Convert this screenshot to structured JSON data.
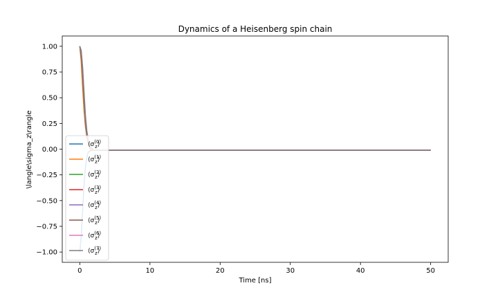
{
  "chart_data": {
    "type": "line",
    "title": "Dynamics of a Heisenberg spin chain",
    "xlabel": "Time [ns]",
    "ylabel": "\\langle\\sigma_z\\rangle",
    "xlim": [
      -2.5,
      52.5
    ],
    "ylim": [
      -1.1,
      1.1
    ],
    "xticks": [
      0,
      10,
      20,
      30,
      40,
      50
    ],
    "yticks": [
      -1.0,
      -0.75,
      -0.5,
      -0.25,
      0.0,
      0.25,
      0.5,
      0.75,
      1.0
    ],
    "xtick_labels": [
      "0",
      "10",
      "20",
      "30",
      "40",
      "50"
    ],
    "ytick_labels": [
      "−1.00",
      "−0.75",
      "−0.50",
      "−0.25",
      "0.00",
      "0.25",
      "0.50",
      "0.75",
      "1.00"
    ],
    "grid": false,
    "legend_position": "lower-left",
    "series": [
      {
        "name": "⟨σz(0)⟩",
        "label_base": "σ",
        "label_sub": "z",
        "label_sup": "(0)",
        "color": "#1f77b4",
        "x": [
          0,
          0.2,
          0.4,
          0.6,
          0.8,
          1.0,
          1.2,
          1.5,
          2.0,
          3.0,
          50
        ],
        "y": [
          -1.0,
          -0.85,
          -0.6,
          -0.35,
          -0.18,
          -0.08,
          -0.03,
          -0.015,
          -0.01,
          -0.01,
          -0.01
        ]
      },
      {
        "name": "⟨σz(1)⟩",
        "label_base": "σ",
        "label_sub": "z",
        "label_sup": "(1)",
        "color": "#ff7f0e",
        "x": [
          0,
          0.2,
          0.4,
          0.6,
          0.8,
          1.0,
          1.2,
          1.5,
          2.0,
          3.0,
          50
        ],
        "y": [
          1.0,
          0.85,
          0.6,
          0.38,
          0.22,
          0.12,
          0.05,
          0.0,
          -0.01,
          -0.01,
          -0.01
        ]
      },
      {
        "name": "⟨σz(2)⟩",
        "label_base": "σ",
        "label_sub": "z",
        "label_sup": "(2)",
        "color": "#2ca02c",
        "x": [
          0,
          0.2,
          0.4,
          0.6,
          0.8,
          1.0,
          1.2,
          1.5,
          2.0,
          3.0,
          50
        ],
        "y": [
          1.0,
          0.9,
          0.7,
          0.45,
          0.25,
          0.13,
          0.06,
          0.01,
          -0.01,
          -0.01,
          -0.01
        ]
      },
      {
        "name": "⟨σz(3)⟩",
        "label_base": "σ",
        "label_sub": "z",
        "label_sup": "(3)",
        "color": "#d62728",
        "x": [
          0,
          0.2,
          0.4,
          0.6,
          0.8,
          1.0,
          1.2,
          1.5,
          2.0,
          3.0,
          50
        ],
        "y": [
          1.0,
          0.92,
          0.72,
          0.48,
          0.27,
          0.14,
          0.07,
          0.01,
          -0.01,
          -0.01,
          -0.01
        ]
      },
      {
        "name": "⟨σz(4)⟩",
        "label_base": "σ",
        "label_sub": "z",
        "label_sup": "(4)",
        "color": "#9467bd",
        "x": [
          0,
          0.2,
          0.4,
          0.6,
          0.8,
          1.0,
          1.2,
          1.5,
          2.0,
          3.0,
          50
        ],
        "y": [
          1.0,
          0.93,
          0.74,
          0.5,
          0.28,
          0.15,
          0.07,
          0.02,
          -0.01,
          -0.01,
          -0.01
        ]
      },
      {
        "name": "⟨σz(5)⟩",
        "label_base": "σ",
        "label_sub": "z",
        "label_sup": "(5)",
        "color": "#8c564b",
        "x": [
          0,
          0.2,
          0.4,
          0.6,
          0.8,
          1.0,
          1.2,
          1.5,
          2.0,
          3.0,
          50
        ],
        "y": [
          1.0,
          0.94,
          0.76,
          0.52,
          0.3,
          0.16,
          0.08,
          0.02,
          -0.01,
          -0.01,
          -0.01
        ]
      },
      {
        "name": "⟨σz(6)⟩",
        "label_base": "σ",
        "label_sub": "z",
        "label_sup": "(6)",
        "color": "#e377c2",
        "x": [
          0,
          0.2,
          0.4,
          0.6,
          0.8,
          1.0,
          1.2,
          1.5,
          2.0,
          3.0,
          50
        ],
        "y": [
          1.0,
          0.95,
          0.78,
          0.54,
          0.31,
          0.17,
          0.08,
          0.02,
          -0.01,
          -0.01,
          -0.01
        ]
      },
      {
        "name": "⟨σz(7)⟩",
        "label_base": "σ",
        "label_sub": "z",
        "label_sup": "(7)",
        "color": "#7f7f7f",
        "x": [
          0,
          0.2,
          0.4,
          0.6,
          0.8,
          1.0,
          1.2,
          1.5,
          2.0,
          3.0,
          50
        ],
        "y": [
          1.0,
          0.96,
          0.8,
          0.56,
          0.33,
          0.18,
          0.09,
          0.02,
          -0.01,
          -0.01,
          -0.01
        ]
      }
    ]
  }
}
